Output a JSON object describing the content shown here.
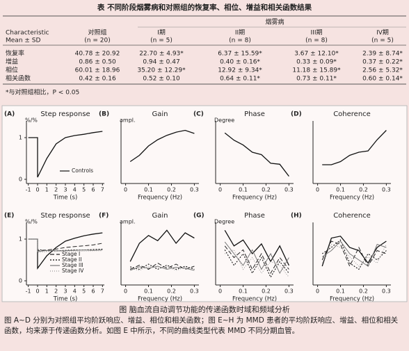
{
  "table": {
    "title": "表  不同阶段烟雾病和对照组的恢复率、相位、增益和相关函数结果",
    "header": {
      "characteristic": "Characteristic",
      "stat": "Mean ± SD",
      "group": "烟雾病",
      "columns": [
        {
          "name": "对照组",
          "n": "(n = 20)"
        },
        {
          "name": "I期",
          "n": "(n = 5)"
        },
        {
          "name": "II期",
          "n": "(n = 8)"
        },
        {
          "name": "III期",
          "n": "(n = 8)"
        },
        {
          "name": "IV期",
          "n": "(n = 5)"
        }
      ]
    },
    "rows": [
      [
        "恢复率",
        "40.78 ± 20.92",
        "22.70 ± 4.93*",
        "6.37 ± 15.59*",
        "3.67 ± 12.10*",
        "2.39 ± 8.74*"
      ],
      [
        "增益",
        "0.86 ± 0.50",
        "0.94 ± 0.47",
        "0.40 ± 0.16*",
        "0.33 ± 0.09*",
        "0.37 ± 0.22*"
      ],
      [
        "相位",
        "60.01 ± 18.96",
        "35.20 ± 12.29*",
        "12.92 ± 9.34*",
        "11.18 ± 15.89*",
        "2.56 ± 5.32*"
      ],
      [
        "相关函数",
        "0.42 ± 0.16",
        "0.52 ± 0.10",
        "0.64 ± 0.11*",
        "0.73 ± 0.11*",
        "0.60 ± 0.14*"
      ]
    ],
    "note": "*与对照组相比，P < 0.05"
  },
  "figure": {
    "panels": [
      {
        "label": "(A)",
        "title": "Step response",
        "ylabel": "%/%",
        "xlabel": "Time (s)",
        "xlim": [
          -1.2,
          7.2
        ],
        "xticks": [
          -1,
          0,
          1,
          2,
          3,
          4,
          5,
          6,
          7
        ],
        "ylim": [
          -0.1,
          1.4
        ],
        "yticks": [
          0,
          1
        ],
        "x": [
          -1,
          0,
          0,
          1,
          2,
          3,
          4,
          5,
          6,
          7
        ],
        "series": [
          {
            "name": "Controls",
            "color": "#111111",
            "values": [
              1,
              1,
              0.05,
              0.5,
              0.85,
              1.0,
              1.05,
              1.08,
              1.12,
              1.15
            ]
          }
        ]
      },
      {
        "label": "(B)",
        "title": "Gain",
        "ylabel": "ampl.",
        "xlabel": "Frequency (Hz)",
        "xlim": [
          -0.02,
          0.32
        ],
        "xticks": [
          0,
          0.1,
          0.2,
          0.3
        ],
        "ylim": [
          0,
          1
        ],
        "x": [
          0.02,
          0.06,
          0.1,
          0.14,
          0.18,
          0.22,
          0.26,
          0.3
        ],
        "series": [
          {
            "color": "#111111",
            "values": [
              0.35,
              0.45,
              0.6,
              0.7,
              0.77,
              0.82,
              0.85,
              0.8
            ]
          }
        ]
      },
      {
        "label": "(C)",
        "title": "Phase",
        "ylabel": "Degree",
        "xlabel": "Frequency (Hz)",
        "xlim": [
          -0.02,
          0.32
        ],
        "xticks": [
          0,
          0.1,
          0.2,
          0.3
        ],
        "ylim": [
          -30,
          100
        ],
        "x": [
          0.02,
          0.06,
          0.1,
          0.14,
          0.18,
          0.22,
          0.26,
          0.3
        ],
        "series": [
          {
            "color": "#111111",
            "values": [
              75,
              60,
              50,
              35,
              30,
              12,
              10,
              -15
            ]
          }
        ]
      },
      {
        "label": "(D)",
        "title": "Coherence",
        "xlabel": "Frequency (Hz)",
        "xlim": [
          -0.02,
          0.32
        ],
        "xticks": [
          0,
          0.1,
          0.2,
          0.3
        ],
        "ylim": [
          0,
          1
        ],
        "x": [
          0.02,
          0.06,
          0.1,
          0.14,
          0.18,
          0.22,
          0.26,
          0.3
        ],
        "series": [
          {
            "color": "#111111",
            "values": [
              0.3,
              0.3,
              0.35,
              0.45,
              0.5,
              0.52,
              0.7,
              0.85
            ]
          }
        ]
      },
      {
        "label": "(E)",
        "title": "Step response",
        "ylabel": "%/%",
        "xlabel": "Time (s)",
        "xlim": [
          -1.2,
          7.2
        ],
        "xticks": [
          -1,
          0,
          1,
          2,
          3,
          4,
          5,
          6,
          7
        ],
        "ylim": [
          -0.1,
          1.4
        ],
        "yticks": [
          0,
          1
        ],
        "x": [
          -1,
          0,
          0,
          1,
          2,
          3,
          4,
          5,
          6,
          7
        ],
        "series": [
          {
            "color": "#111111",
            "values": [
              1,
              1,
              0.3,
              0.6,
              0.8,
              0.95,
              1.02,
              1.08,
              1.12,
              1.15
            ]
          },
          {
            "name": "Stage I",
            "color": "#222222",
            "dash": "6,3",
            "values": [
              1,
              1,
              0.72,
              0.74,
              0.76,
              0.8,
              0.82,
              0.84,
              0.86,
              0.9
            ]
          },
          {
            "name": "Stage II",
            "color": "#000000",
            "dash": "2,2",
            "values": [
              1,
              1,
              0.75,
              0.72,
              0.72,
              0.73,
              0.74,
              0.74,
              0.75,
              0.76
            ]
          },
          {
            "name": "Stage III",
            "color": "#777777",
            "values": [
              1,
              1,
              0.7,
              0.73,
              0.72,
              0.72,
              0.73,
              0.74,
              0.73,
              0.74
            ]
          },
          {
            "name": "Stage IV",
            "color": "#999999",
            "dash": "1,2",
            "values": [
              1,
              1,
              0.68,
              0.7,
              0.7,
              0.71,
              0.7,
              0.71,
              0.72,
              0.72
            ]
          }
        ]
      },
      {
        "label": "(F)",
        "title": "Gain",
        "ylabel": "ampl.",
        "xlabel": "Frequency (Hz)",
        "xlim": [
          -0.02,
          0.32
        ],
        "xticks": [
          0,
          0.1,
          0.2,
          0.3
        ],
        "ylim": [
          0,
          1.2
        ],
        "x": [
          0.02,
          0.06,
          0.1,
          0.14,
          0.18,
          0.22,
          0.26,
          0.3
        ],
        "series": [
          {
            "color": "#111111",
            "values": [
              0.45,
              0.8,
              0.95,
              0.85,
              1.05,
              0.8,
              1.0,
              0.9
            ]
          },
          {
            "color": "#222222",
            "dash": "6,3",
            "values": [
              0.3,
              0.38,
              0.3,
              0.42,
              0.32,
              0.4,
              0.3,
              0.36
            ]
          },
          {
            "color": "#000000",
            "dash": "2,2",
            "values": [
              0.35,
              0.3,
              0.4,
              0.3,
              0.38,
              0.3,
              0.36,
              0.3
            ]
          },
          {
            "color": "#777777",
            "values": [
              0.28,
              0.35,
              0.32,
              0.36,
              0.3,
              0.34,
              0.32,
              0.28
            ]
          },
          {
            "color": "#999999",
            "dash": "1,2",
            "values": [
              0.32,
              0.28,
              0.36,
              0.33,
              0.35,
              0.28,
              0.34,
              0.32
            ]
          }
        ]
      },
      {
        "label": "(G)",
        "title": "Phase",
        "ylabel": "Degree",
        "xlabel": "Frequency (Hz)",
        "xlim": [
          -0.02,
          0.32
        ],
        "xticks": [
          0,
          0.1,
          0.2,
          0.3
        ],
        "ylim": [
          -60,
          100
        ],
        "x": [
          0.02,
          0.06,
          0.1,
          0.14,
          0.18,
          0.22,
          0.26,
          0.3
        ],
        "series": [
          {
            "color": "#111111",
            "values": [
              80,
              40,
              55,
              20,
              45,
              0,
              40,
              -10
            ]
          },
          {
            "color": "#222222",
            "dash": "6,3",
            "values": [
              40,
              10,
              30,
              -20,
              20,
              -30,
              10,
              -20
            ]
          },
          {
            "color": "#000000",
            "dash": "2,2",
            "values": [
              30,
              -10,
              20,
              -30,
              10,
              -40,
              0,
              -30
            ]
          },
          {
            "color": "#777777",
            "values": [
              50,
              20,
              -10,
              30,
              -20,
              20,
              -30,
              10
            ]
          },
          {
            "color": "#999999",
            "dash": "1,2",
            "values": [
              20,
              30,
              -20,
              10,
              -30,
              0,
              -10,
              -40
            ]
          }
        ]
      },
      {
        "label": "(H)",
        "title": "Coherence",
        "xlabel": "Frequency (Hz)",
        "xlim": [
          -0.02,
          0.32
        ],
        "xticks": [
          0,
          0.1,
          0.2,
          0.3
        ],
        "ylim": [
          0,
          1
        ],
        "x": [
          0.02,
          0.06,
          0.1,
          0.14,
          0.18,
          0.22,
          0.26,
          0.3
        ],
        "series": [
          {
            "color": "#111111",
            "values": [
              0.3,
              0.75,
              0.78,
              0.6,
              0.55,
              0.35,
              0.6,
              0.7
            ]
          },
          {
            "color": "#222222",
            "dash": "6,3",
            "values": [
              0.4,
              0.7,
              0.65,
              0.3,
              0.6,
              0.3,
              0.55,
              0.5
            ]
          },
          {
            "color": "#000000",
            "dash": "2,2",
            "values": [
              0.5,
              0.6,
              0.72,
              0.35,
              0.25,
              0.5,
              0.4,
              0.55
            ]
          },
          {
            "color": "#777777",
            "values": [
              0.45,
              0.55,
              0.7,
              0.5,
              0.4,
              0.3,
              0.65,
              0.6
            ]
          },
          {
            "color": "#999999",
            "dash": "1,2",
            "values": [
              0.35,
              0.65,
              0.6,
              0.45,
              0.3,
              0.45,
              0.35,
              0.65
            ]
          }
        ]
      }
    ],
    "caption_title": "图  脑血流自动调节功能的传递函数时域和频域分析",
    "caption": "图 A~D 分别为对照组平均阶跃响应、增益、相位和相关函数；图 E~H 为 MMD 患者的平均阶跃响应、增益、相位和相关函数，均来源于传递函数分析。如图 E 中所示，不同的曲线类型代表 MMD 不同分期血管。"
  }
}
